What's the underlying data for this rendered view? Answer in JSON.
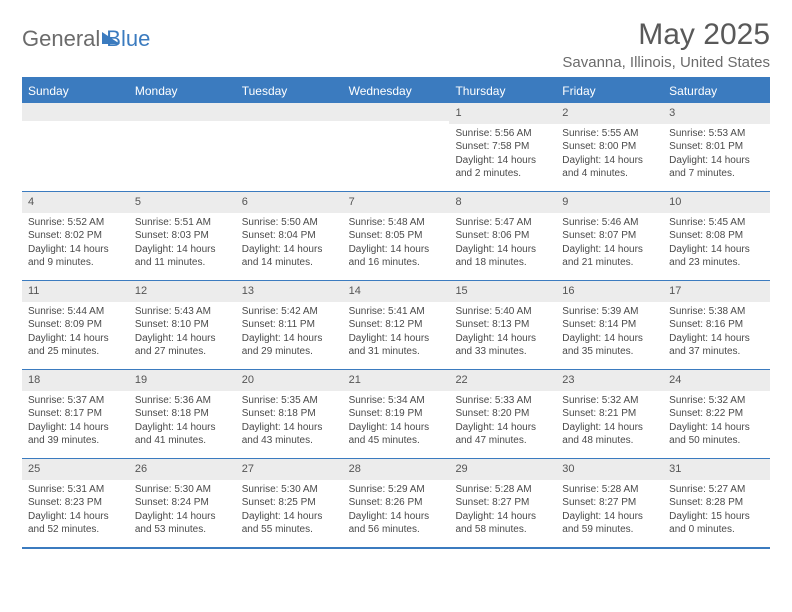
{
  "brand": {
    "part1": "General",
    "part2": "Blue"
  },
  "title": "May 2025",
  "location": "Savanna, Illinois, United States",
  "colors": {
    "accent": "#3b7bbf",
    "header_text": "#ffffff",
    "daynum_bg": "#ececec",
    "body_text": "#4a4a4a",
    "title_text": "#595959"
  },
  "day_names": [
    "Sunday",
    "Monday",
    "Tuesday",
    "Wednesday",
    "Thursday",
    "Friday",
    "Saturday"
  ],
  "weeks": [
    [
      null,
      null,
      null,
      null,
      {
        "n": "1",
        "sr": "5:56 AM",
        "ss": "7:58 PM",
        "dl": "14 hours and 2 minutes."
      },
      {
        "n": "2",
        "sr": "5:55 AM",
        "ss": "8:00 PM",
        "dl": "14 hours and 4 minutes."
      },
      {
        "n": "3",
        "sr": "5:53 AM",
        "ss": "8:01 PM",
        "dl": "14 hours and 7 minutes."
      }
    ],
    [
      {
        "n": "4",
        "sr": "5:52 AM",
        "ss": "8:02 PM",
        "dl": "14 hours and 9 minutes."
      },
      {
        "n": "5",
        "sr": "5:51 AM",
        "ss": "8:03 PM",
        "dl": "14 hours and 11 minutes."
      },
      {
        "n": "6",
        "sr": "5:50 AM",
        "ss": "8:04 PM",
        "dl": "14 hours and 14 minutes."
      },
      {
        "n": "7",
        "sr": "5:48 AM",
        "ss": "8:05 PM",
        "dl": "14 hours and 16 minutes."
      },
      {
        "n": "8",
        "sr": "5:47 AM",
        "ss": "8:06 PM",
        "dl": "14 hours and 18 minutes."
      },
      {
        "n": "9",
        "sr": "5:46 AM",
        "ss": "8:07 PM",
        "dl": "14 hours and 21 minutes."
      },
      {
        "n": "10",
        "sr": "5:45 AM",
        "ss": "8:08 PM",
        "dl": "14 hours and 23 minutes."
      }
    ],
    [
      {
        "n": "11",
        "sr": "5:44 AM",
        "ss": "8:09 PM",
        "dl": "14 hours and 25 minutes."
      },
      {
        "n": "12",
        "sr": "5:43 AM",
        "ss": "8:10 PM",
        "dl": "14 hours and 27 minutes."
      },
      {
        "n": "13",
        "sr": "5:42 AM",
        "ss": "8:11 PM",
        "dl": "14 hours and 29 minutes."
      },
      {
        "n": "14",
        "sr": "5:41 AM",
        "ss": "8:12 PM",
        "dl": "14 hours and 31 minutes."
      },
      {
        "n": "15",
        "sr": "5:40 AM",
        "ss": "8:13 PM",
        "dl": "14 hours and 33 minutes."
      },
      {
        "n": "16",
        "sr": "5:39 AM",
        "ss": "8:14 PM",
        "dl": "14 hours and 35 minutes."
      },
      {
        "n": "17",
        "sr": "5:38 AM",
        "ss": "8:16 PM",
        "dl": "14 hours and 37 minutes."
      }
    ],
    [
      {
        "n": "18",
        "sr": "5:37 AM",
        "ss": "8:17 PM",
        "dl": "14 hours and 39 minutes."
      },
      {
        "n": "19",
        "sr": "5:36 AM",
        "ss": "8:18 PM",
        "dl": "14 hours and 41 minutes."
      },
      {
        "n": "20",
        "sr": "5:35 AM",
        "ss": "8:18 PM",
        "dl": "14 hours and 43 minutes."
      },
      {
        "n": "21",
        "sr": "5:34 AM",
        "ss": "8:19 PM",
        "dl": "14 hours and 45 minutes."
      },
      {
        "n": "22",
        "sr": "5:33 AM",
        "ss": "8:20 PM",
        "dl": "14 hours and 47 minutes."
      },
      {
        "n": "23",
        "sr": "5:32 AM",
        "ss": "8:21 PM",
        "dl": "14 hours and 48 minutes."
      },
      {
        "n": "24",
        "sr": "5:32 AM",
        "ss": "8:22 PM",
        "dl": "14 hours and 50 minutes."
      }
    ],
    [
      {
        "n": "25",
        "sr": "5:31 AM",
        "ss": "8:23 PM",
        "dl": "14 hours and 52 minutes."
      },
      {
        "n": "26",
        "sr": "5:30 AM",
        "ss": "8:24 PM",
        "dl": "14 hours and 53 minutes."
      },
      {
        "n": "27",
        "sr": "5:30 AM",
        "ss": "8:25 PM",
        "dl": "14 hours and 55 minutes."
      },
      {
        "n": "28",
        "sr": "5:29 AM",
        "ss": "8:26 PM",
        "dl": "14 hours and 56 minutes."
      },
      {
        "n": "29",
        "sr": "5:28 AM",
        "ss": "8:27 PM",
        "dl": "14 hours and 58 minutes."
      },
      {
        "n": "30",
        "sr": "5:28 AM",
        "ss": "8:27 PM",
        "dl": "14 hours and 59 minutes."
      },
      {
        "n": "31",
        "sr": "5:27 AM",
        "ss": "8:28 PM",
        "dl": "15 hours and 0 minutes."
      }
    ]
  ],
  "labels": {
    "sunrise": "Sunrise:",
    "sunset": "Sunset:",
    "daylight": "Daylight:"
  }
}
